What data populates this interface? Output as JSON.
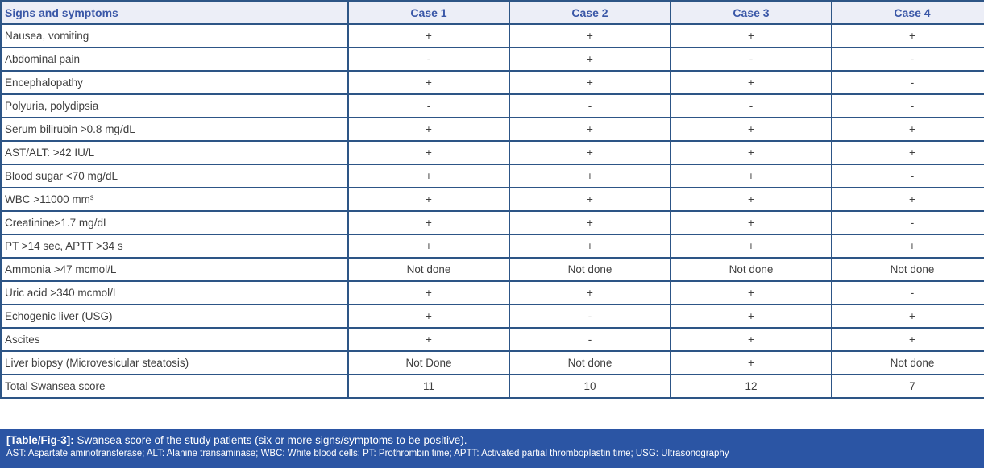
{
  "table": {
    "header": {
      "signs_label": "Signs and symptoms",
      "cases": [
        "Case 1",
        "Case 2",
        "Case 3",
        "Case 4"
      ]
    },
    "rows": [
      {
        "label": "Nausea, vomiting",
        "values": [
          "+",
          "+",
          "+",
          "+"
        ]
      },
      {
        "label": "Abdominal pain",
        "values": [
          "-",
          "+",
          "-",
          "-"
        ]
      },
      {
        "label": "Encephalopathy",
        "values": [
          "+",
          "+",
          "+",
          "-"
        ]
      },
      {
        "label": "Polyuria, polydipsia",
        "values": [
          "-",
          "-",
          "-",
          "-"
        ]
      },
      {
        "label": "Serum bilirubin >0.8 mg/dL",
        "values": [
          "+",
          "+",
          "+",
          "+"
        ]
      },
      {
        "label": "AST/ALT: >42 IU/L",
        "values": [
          "+",
          "+",
          "+",
          "+"
        ]
      },
      {
        "label": "Blood sugar <70 mg/dL",
        "values": [
          "+",
          "+",
          "+",
          "-"
        ]
      },
      {
        "label": "WBC >11000 mm³",
        "values": [
          "+",
          "+",
          "+",
          "+"
        ]
      },
      {
        "label": "Creatinine>1.7 mg/dL",
        "values": [
          "+",
          "+",
          "+",
          "-"
        ]
      },
      {
        "label": "PT >14 sec, APTT >34 s",
        "values": [
          "+",
          "+",
          "+",
          "+"
        ]
      },
      {
        "label": "Ammonia >47 mcmol/L",
        "values": [
          "Not done",
          "Not done",
          "Not done",
          "Not done"
        ]
      },
      {
        "label": "Uric acid >340 mcmol/L",
        "values": [
          "+",
          "+",
          "+",
          "-"
        ]
      },
      {
        "label": "Echogenic liver (USG)",
        "values": [
          "+",
          "-",
          "+",
          "+"
        ]
      },
      {
        "label": "Ascites",
        "values": [
          "+",
          "-",
          "+",
          "+"
        ]
      },
      {
        "label": "Liver biopsy (Microvesicular steatosis)",
        "values": [
          "Not Done",
          "Not done",
          "+",
          "Not done"
        ]
      },
      {
        "label": "Total Swansea score",
        "values": [
          "11",
          "10",
          "12",
          "7"
        ]
      }
    ]
  },
  "caption": {
    "tag": "[Table/Fig-3]:",
    "text": " Swansea score of the study patients (six or more signs/symptoms to be positive).",
    "abbreviations": "AST: Aspartate aminotransferase; ALT: Alanine transaminase; WBC: White blood cells; PT: Prothrombin time; APTT: Activated partial thromboplastin time; USG: Ultrasonography"
  },
  "colors": {
    "border": "#2d5586",
    "header_bg": "#eceef7",
    "header_text": "#3a57a7",
    "body_text": "#3f3f3f",
    "caption_bg": "#2b55a4",
    "caption_text": "#ffffff"
  }
}
